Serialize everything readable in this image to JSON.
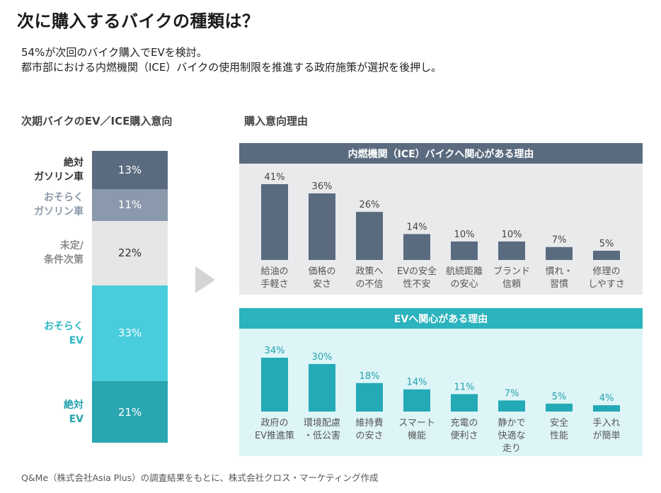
{
  "title": "次に購入するバイクの種類は？",
  "subtitle": {
    "line1": "54%が次回のバイク購入でEVを検討。",
    "line2": "都市部における内燃機関（ICE）バイクの使用制限を推進する政府施策が選択を後押し。"
  },
  "colors": {
    "ice_bar": "#5a6b80",
    "ev_bar": "#23aab5",
    "ice_header": "#5a6b80",
    "ev_header": "#2bb3be",
    "ice_panel_bg": "#e9eaec",
    "ev_panel_bg": "#def5f8"
  },
  "chart_data": [
    {
      "type": "stacked-bar",
      "title": "次期バイクのEV／ICE購入意向",
      "categories": [
        "絶対ガソリン車",
        "おそらくガソリン車",
        "未定/条件次第",
        "おそらくEV",
        "絶対EV"
      ],
      "labels": [
        [
          "絶対",
          "ガソリン車"
        ],
        [
          "おそらく",
          "ガソリン車"
        ],
        [
          "未定/",
          "条件次第"
        ],
        [
          "おそらく",
          "EV"
        ],
        [
          "絶対",
          "EV"
        ]
      ],
      "values": [
        13,
        11,
        22,
        33,
        21
      ],
      "value_labels": [
        "13%",
        "11%",
        "22%",
        "33%",
        "21%"
      ],
      "colors": [
        "#5a6b80",
        "#8a99ab",
        "#e6e6e6",
        "#49ccdb",
        "#2aa6b0"
      ],
      "label_colors": [
        "#333333",
        "#8a99ab",
        "#8a8a8a",
        "#2fb8c6",
        "#23a2ad"
      ],
      "value_colors": [
        "#ffffff",
        "#ffffff",
        "#333333",
        "#ffffff",
        "#ffffff"
      ]
    },
    {
      "type": "bar",
      "title": "内燃機関（ICE）バイクへ関心がある理由",
      "categories": [
        [
          "給油の",
          "手軽さ"
        ],
        [
          "価格の",
          "安さ"
        ],
        [
          "政策へ",
          "の不信"
        ],
        [
          "EVの安全",
          "性不安"
        ],
        [
          "航続距離",
          "の安心"
        ],
        [
          "ブランド",
          "信頼"
        ],
        [
          "慣れ・",
          "習慣"
        ],
        [
          "修理の",
          "しやすさ"
        ]
      ],
      "values": [
        41,
        36,
        26,
        14,
        10,
        10,
        7,
        5
      ],
      "value_labels": [
        "41%",
        "36%",
        "26%",
        "14%",
        "10%",
        "10%",
        "7%",
        "5%"
      ],
      "ylim": [
        0,
        41
      ]
    },
    {
      "type": "bar",
      "title": "EVへ関心がある理由",
      "categories": [
        [
          "政府の",
          "EV推進策"
        ],
        [
          "環境配慮",
          "・低公害"
        ],
        [
          "維持費",
          "の安さ"
        ],
        [
          "スマート",
          "機能"
        ],
        [
          "充電の",
          "便利さ"
        ],
        [
          "静かで",
          "快適な",
          "走り"
        ],
        [
          "安全",
          "性能"
        ],
        [
          "手入れ",
          "が簡単"
        ]
      ],
      "values": [
        34,
        30,
        18,
        14,
        11,
        7,
        5,
        4
      ],
      "value_labels": [
        "34%",
        "30%",
        "18%",
        "14%",
        "11%",
        "7%",
        "5%",
        "4%"
      ],
      "ylim": [
        0,
        34
      ]
    }
  ],
  "section_right_title": "購入意向理由",
  "footer": "Q&Me（株式会社Asia Plus）の調査結果をもとに、株式会社クロス・マーケティング作成"
}
